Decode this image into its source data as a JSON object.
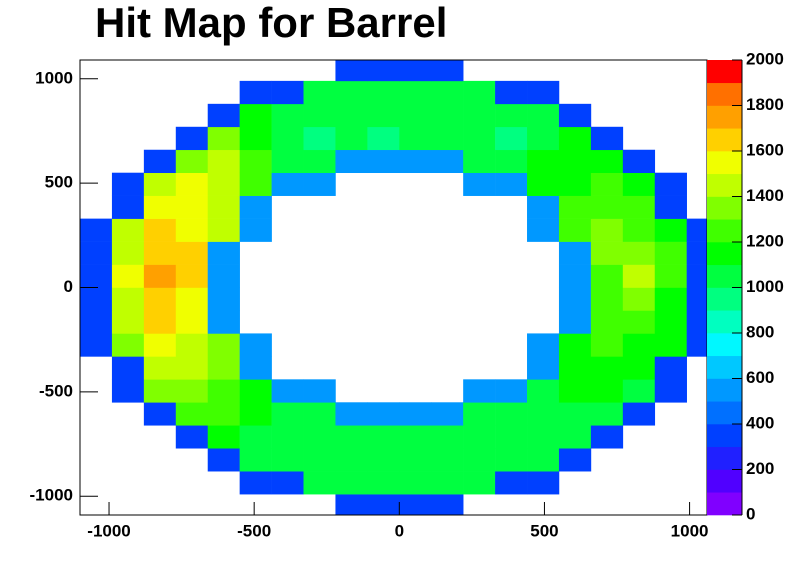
{
  "chart_data": {
    "type": "heatmap",
    "title": "Hit Map for Barrel",
    "xlim": [
      -1100,
      1060
    ],
    "ylim": [
      -1090,
      1090
    ],
    "xticks": [
      -1000,
      -500,
      0,
      500,
      1000
    ],
    "yticks": [
      -1000,
      -500,
      0,
      500,
      1000
    ],
    "xbins": [
      -1100,
      -990,
      -880,
      -770,
      -660,
      -550,
      -440,
      -330,
      -220,
      -110,
      0,
      110,
      220,
      330,
      440,
      550,
      660,
      770,
      880,
      990,
      1100
    ],
    "ybins": [
      -1100,
      -990,
      -880,
      -770,
      -660,
      -550,
      -440,
      -330,
      -220,
      -110,
      0,
      110,
      220,
      330,
      440,
      550,
      660,
      770,
      880,
      990,
      1100
    ],
    "values": [
      [
        0,
        0,
        0,
        0,
        0,
        0,
        0,
        0,
        300,
        300,
        300,
        300,
        0,
        0,
        0,
        0,
        0,
        0,
        0,
        0
      ],
      [
        0,
        0,
        0,
        0,
        0,
        300,
        300,
        1000,
        1000,
        1000,
        1000,
        1000,
        1000,
        300,
        300,
        0,
        0,
        0,
        0,
        0
      ],
      [
        0,
        0,
        0,
        0,
        300,
        1000,
        1000,
        1000,
        1000,
        1000,
        1000,
        1000,
        1000,
        1000,
        1000,
        300,
        0,
        0,
        0,
        0
      ],
      [
        0,
        0,
        0,
        300,
        1100,
        1050,
        1000,
        1000,
        1000,
        1000,
        1000,
        1000,
        1000,
        1000,
        1000,
        1000,
        300,
        0,
        0,
        0
      ],
      [
        0,
        0,
        300,
        1200,
        1200,
        1100,
        1050,
        1000,
        500,
        500,
        500,
        500,
        1000,
        1000,
        1000,
        1050,
        1050,
        300,
        0,
        0
      ],
      [
        0,
        300,
        1300,
        1350,
        1250,
        1100,
        500,
        500,
        0,
        0,
        0,
        0,
        500,
        500,
        1050,
        1100,
        1100,
        1050,
        300,
        0
      ],
      [
        0,
        300,
        1400,
        1450,
        1350,
        500,
        0,
        0,
        0,
        0,
        0,
        0,
        0,
        0,
        500,
        1150,
        1150,
        1100,
        300,
        0
      ],
      [
        300,
        1300,
        1500,
        1450,
        1350,
        500,
        0,
        0,
        0,
        0,
        0,
        0,
        0,
        0,
        500,
        1150,
        1200,
        1150,
        1100,
        300
      ],
      [
        300,
        1400,
        1600,
        1500,
        500,
        0,
        0,
        0,
        0,
        0,
        0,
        0,
        0,
        0,
        0,
        500,
        1200,
        1250,
        1150,
        300
      ],
      [
        300,
        1450,
        1650,
        1550,
        500,
        0,
        0,
        0,
        0,
        0,
        0,
        0,
        0,
        0,
        0,
        500,
        1250,
        1300,
        1150,
        300
      ],
      [
        300,
        1500,
        1700,
        1600,
        500,
        0,
        0,
        0,
        0,
        0,
        0,
        0,
        0,
        0,
        0,
        500,
        1250,
        1400,
        1200,
        300
      ],
      [
        300,
        1450,
        1650,
        1600,
        500,
        0,
        0,
        0,
        0,
        0,
        0,
        0,
        0,
        0,
        0,
        500,
        1300,
        1350,
        1200,
        300
      ],
      [
        300,
        1400,
        1600,
        1550,
        1400,
        500,
        0,
        0,
        0,
        0,
        0,
        0,
        0,
        0,
        500,
        1200,
        1300,
        1250,
        1150,
        300
      ],
      [
        0,
        300,
        1500,
        1550,
        1450,
        500,
        0,
        0,
        0,
        0,
        0,
        0,
        0,
        0,
        500,
        1200,
        1250,
        1200,
        300,
        0
      ],
      [
        0,
        300,
        1400,
        1500,
        1400,
        1200,
        500,
        500,
        0,
        0,
        0,
        0,
        500,
        500,
        1100,
        1150,
        1200,
        1150,
        300,
        0
      ],
      [
        0,
        0,
        300,
        1300,
        1400,
        1200,
        1050,
        1000,
        500,
        500,
        500,
        500,
        1000,
        1000,
        1100,
        1150,
        1100,
        300,
        0,
        0
      ],
      [
        0,
        0,
        0,
        300,
        1300,
        1100,
        1000,
        950,
        1000,
        980,
        1000,
        1050,
        1000,
        980,
        1000,
        1100,
        300,
        0,
        0,
        0
      ],
      [
        0,
        0,
        0,
        0,
        300,
        1100,
        1000,
        1000,
        1000,
        1000,
        1000,
        1000,
        1000,
        1000,
        1000,
        300,
        0,
        0,
        0,
        0
      ],
      [
        0,
        0,
        0,
        0,
        0,
        300,
        300,
        1000,
        1000,
        1000,
        1000,
        1000,
        1000,
        300,
        300,
        0,
        0,
        0,
        0,
        0
      ],
      [
        0,
        0,
        0,
        0,
        0,
        0,
        0,
        0,
        300,
        300,
        300,
        300,
        0,
        0,
        0,
        0,
        0,
        0,
        0,
        0
      ]
    ],
    "zlim": [
      0,
      2000
    ],
    "zticks": [
      0,
      200,
      400,
      600,
      800,
      1000,
      1200,
      1400,
      1600,
      1800,
      2000
    ],
    "palette": [
      "#8000ff",
      "#5000ff",
      "#2020ff",
      "#0040ff",
      "#0070ff",
      "#0098ff",
      "#00c8ff",
      "#00f8ff",
      "#00ffc0",
      "#00ff80",
      "#00ff40",
      "#00ff00",
      "#40ff00",
      "#80ff00",
      "#c0ff00",
      "#f0ff00",
      "#ffd000",
      "#ffa000",
      "#ff7000",
      "#ff0000"
    ]
  }
}
